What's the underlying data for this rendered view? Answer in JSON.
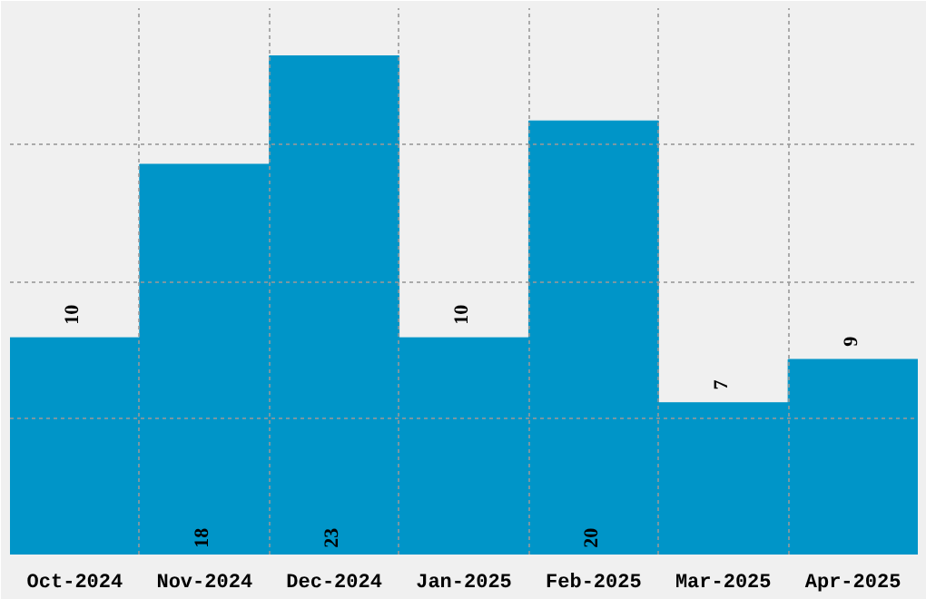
{
  "chart_data": {
    "type": "bar",
    "categories": [
      "Oct-2024",
      "Nov-2024",
      "Dec-2024",
      "Jan-2025",
      "Feb-2025",
      "Mar-2025",
      "Apr-2025"
    ],
    "values": [
      10,
      18,
      23,
      10,
      20,
      7,
      9
    ],
    "color": "#0095c8",
    "data_labels": true,
    "grid": true,
    "tick_labels": "x",
    "ylim": [
      0,
      25.2
    ],
    "yticks": [
      {
        "value": 0,
        "label": null
      },
      {
        "value": 6.3,
        "label": null
      },
      {
        "value": 12.6,
        "label": null
      },
      {
        "value": 18.9,
        "label": null
      },
      {
        "value": 25.2,
        "label": null
      }
    ]
  }
}
